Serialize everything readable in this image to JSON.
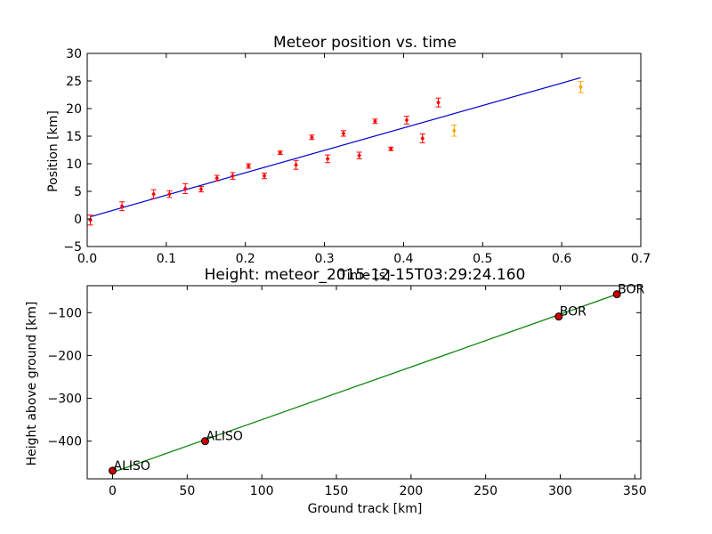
{
  "chart_data": [
    {
      "type": "scatter",
      "title": "Meteor position vs. time",
      "xlabel": "Time [s]",
      "ylabel": "Position [km]",
      "xlim": [
        0.0,
        0.7
      ],
      "ylim": [
        -5,
        30
      ],
      "xticks": [
        "0.0",
        "0.1",
        "0.2",
        "0.3",
        "0.4",
        "0.5",
        "0.6",
        "0.7"
      ],
      "yticks": [
        "−5",
        "0",
        "5",
        "10",
        "15",
        "20",
        "25",
        "30"
      ],
      "colors": {
        "points": "#ff0000",
        "alt_points": "#ffa500",
        "fit": "#0000cc",
        "errorbar": "#ff0000"
      },
      "series": [
        {
          "kind": "points",
          "color": "#ff0000",
          "x": [
            0.004,
            0.044,
            0.084,
            0.104,
            0.124,
            0.144,
            0.164,
            0.184,
            0.204,
            0.224,
            0.244,
            0.264,
            0.284,
            0.304,
            0.324,
            0.344,
            0.364,
            0.384,
            0.404,
            0.424,
            0.444
          ],
          "y": [
            -0.2,
            2.3,
            4.5,
            4.5,
            5.5,
            5.4,
            7.4,
            7.8,
            9.6,
            7.8,
            12.0,
            9.8,
            14.8,
            10.9,
            15.5,
            11.5,
            17.7,
            12.7,
            17.9,
            14.6,
            21.1
          ],
          "err": [
            0.9,
            0.8,
            0.8,
            0.6,
            0.9,
            0.5,
            0.5,
            0.6,
            0.4,
            0.5,
            0.3,
            0.8,
            0.4,
            0.7,
            0.5,
            0.6,
            0.4,
            0.3,
            0.7,
            0.8,
            0.8
          ]
        },
        {
          "kind": "points",
          "color": "#ffa500",
          "x": [
            0.464,
            0.624
          ],
          "y": [
            16.0,
            23.9
          ],
          "err": [
            1.0,
            1.0
          ]
        },
        {
          "kind": "fit-line",
          "color": "#0000cc",
          "x": [
            0.004,
            0.624
          ],
          "y": [
            0.4,
            25.6
          ]
        }
      ]
    },
    {
      "type": "line",
      "title": "Height: meteor_2015-12-15T03:29:24.160",
      "xlabel": "Ground track [km]",
      "ylabel": "Height above ground [km]",
      "xlim": [
        -17,
        354
      ],
      "ylim": [
        -488,
        -37
      ],
      "xticks": [
        "0",
        "50",
        "100",
        "150",
        "200",
        "250",
        "300",
        "350"
      ],
      "yticks": [
        "−100",
        "−200",
        "−300",
        "−400"
      ],
      "colors": {
        "line": "#008000",
        "marker": "#cc0000"
      },
      "line": {
        "x": [
          0,
          338
        ],
        "y": [
          -473,
          -57
        ]
      },
      "points": [
        {
          "x": 0,
          "y": -469,
          "label": "ALISO"
        },
        {
          "x": 62,
          "y": -400,
          "label": "ALISO"
        },
        {
          "x": 299,
          "y": -109,
          "label": "BOR"
        },
        {
          "x": 338,
          "y": -57,
          "label": "BOR"
        }
      ]
    }
  ]
}
